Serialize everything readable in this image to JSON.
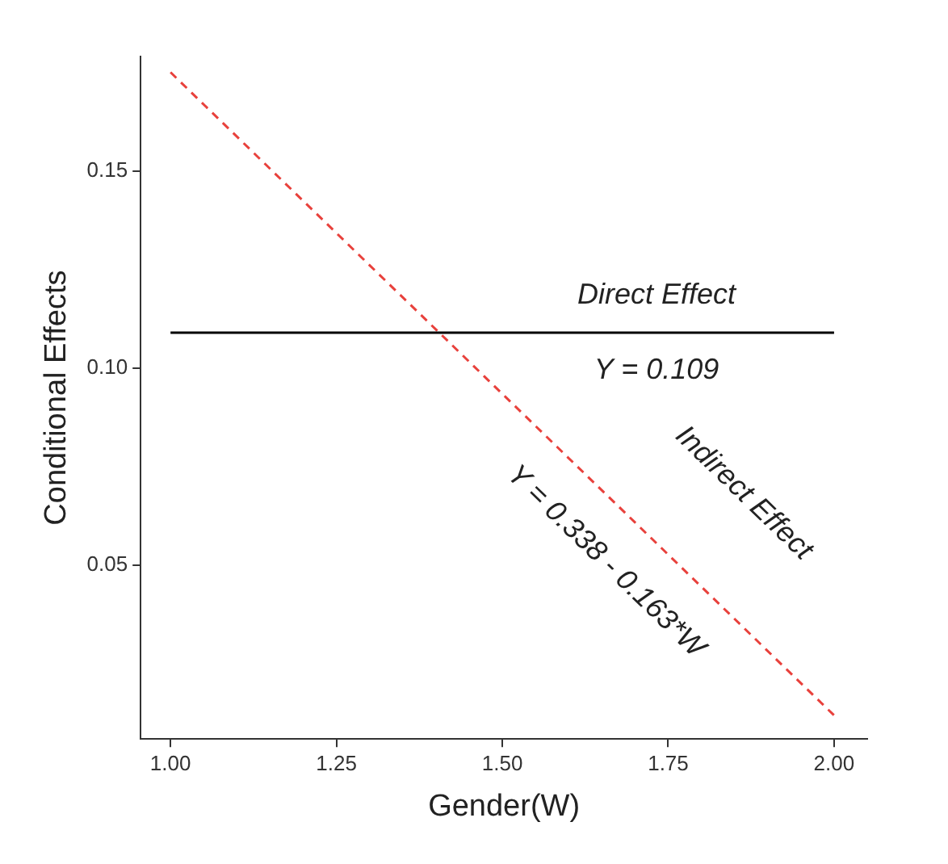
{
  "chart_data": {
    "type": "line",
    "xlabel": "Gender(W)",
    "ylabel": "Conditional Effects",
    "xlim": [
      0.955,
      2.05
    ],
    "ylim": [
      0.006,
      0.179
    ],
    "xticks": [
      {
        "value": 1,
        "label": "1.00"
      },
      {
        "value": 1.25,
        "label": "1.25"
      },
      {
        "value": 1.5,
        "label": "1.50"
      },
      {
        "value": 1.75,
        "label": "1.75"
      },
      {
        "value": 2,
        "label": "2.00"
      }
    ],
    "yticks": [
      {
        "value": 0.05,
        "label": "0.05"
      },
      {
        "value": 0.1,
        "label": "0.10"
      },
      {
        "value": 0.15,
        "label": "0.15"
      }
    ],
    "grid": false,
    "legend": false,
    "marker": "none",
    "x": [
      1,
      2
    ],
    "series": [
      {
        "type": "line",
        "color": "#000000",
        "line_style": "solid",
        "values": [
          0.109,
          0.109
        ]
      },
      {
        "type": "line",
        "color": "#e8413c",
        "line_style": "dashed",
        "values": [
          0.175,
          0.012
        ]
      }
    ],
    "annotations": [
      "Direct Effect",
      "Y = 0.109",
      "Indirect Effect",
      "Y = 0.338 - 0.163*W"
    ]
  }
}
